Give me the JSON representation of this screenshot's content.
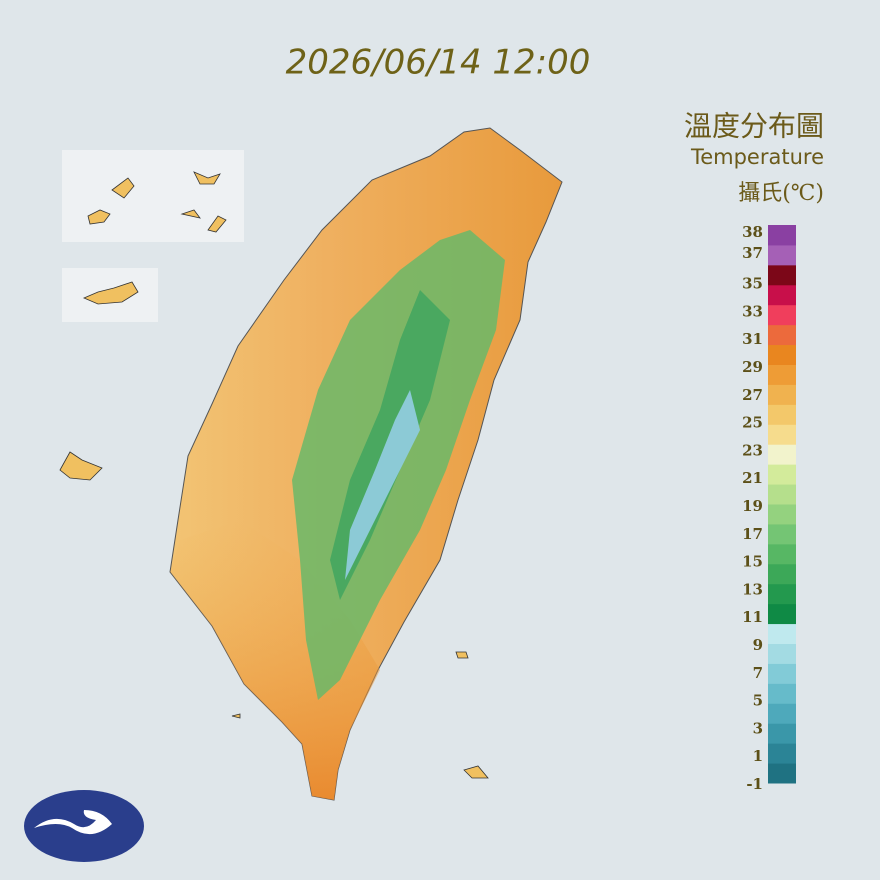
{
  "timestamp": "2026/06/14 12:00",
  "legend": {
    "title": "溫度分布圖",
    "subtitle": "Temperature",
    "unit": "攝氏(℃)",
    "labels": [
      "-1",
      "1",
      "3",
      "5",
      "7",
      "9",
      "11",
      "13",
      "15",
      "17",
      "19",
      "21",
      "23",
      "25",
      "27",
      "29",
      "31",
      "33",
      "35",
      "37",
      "38"
    ],
    "colors": [
      "#1f7282",
      "#2b8496",
      "#3a97a9",
      "#4ea9bb",
      "#66bbca",
      "#82cbd7",
      "#a3dbe3",
      "#bfe9ee",
      "#0f8a45",
      "#23994e",
      "#3ca858",
      "#57b764",
      "#74c574",
      "#94d27f",
      "#b5df8c",
      "#d3eb9b",
      "#f2f3cc",
      "#f6dc8d",
      "#f3c86a",
      "#f0b24f",
      "#ee9c36",
      "#e9861f",
      "#ec6a3c",
      "#f03e5c",
      "#c80f4a",
      "#7c0718",
      "#a560b6",
      "#8a40a2"
    ]
  }
}
